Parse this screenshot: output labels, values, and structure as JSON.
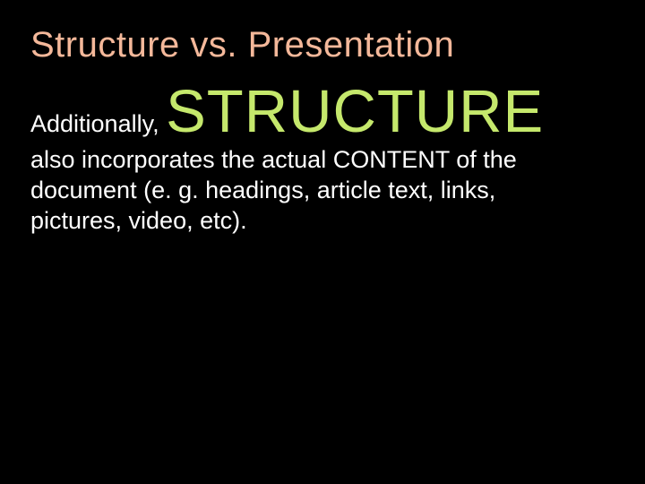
{
  "slide": {
    "title": "Structure vs. Presentation",
    "lead": "Additionally, ",
    "emph": "STRUCTURE",
    "rest": "also incorporates the actual CONTENT of the document (e. g. headings, article text, links, pictures, video, etc).",
    "colors": {
      "background": "#000000",
      "title": "#f4b89a",
      "body": "#ffffff",
      "emph": "#c5e86c"
    },
    "fonts": {
      "title_size_pt": 30,
      "body_size_pt": 20,
      "emph_size_pt": 50,
      "family": "Arial"
    }
  }
}
